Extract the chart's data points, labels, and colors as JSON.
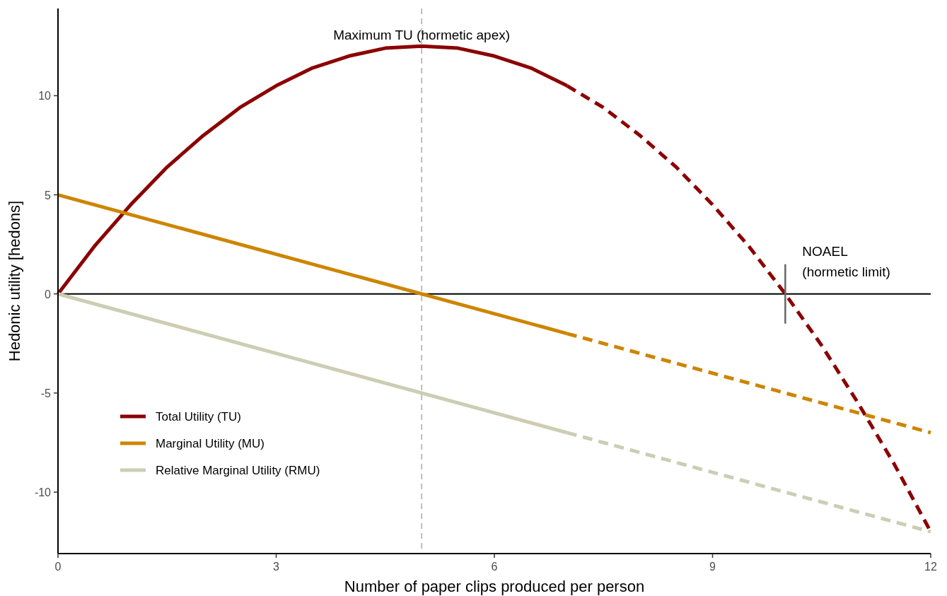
{
  "chart_data": {
    "type": "line",
    "xlabel": "Number of paper clips produced per person",
    "ylabel": "Hedonic utility [hedons]",
    "xlim": [
      0,
      12
    ],
    "xticks": [
      0,
      3,
      6,
      9,
      12
    ],
    "ylim": [
      -13.1,
      14.4
    ],
    "yticks": [
      -10,
      -5,
      0,
      5,
      10
    ],
    "grid": false,
    "legend": "bottom left",
    "marker": "none",
    "series": [
      {
        "name": "Total Utility (TU)",
        "color": "#8b0000",
        "line_style": "solid",
        "x": [
          0,
          0.5,
          1,
          1.5,
          2,
          2.5,
          3,
          3.5,
          4,
          4.5,
          5,
          5.5,
          6,
          6.5,
          7
        ],
        "values": [
          0,
          2.4,
          4.5,
          6.4,
          8,
          9.4,
          10.5,
          11.4,
          12,
          12.4,
          12.5,
          12.4,
          12,
          11.4,
          10.5
        ]
      },
      {
        "color": "#8b0000",
        "line_style": "dashed",
        "x": [
          7,
          7.5,
          8,
          8.5,
          9,
          9.5,
          10,
          10.5,
          11,
          11.5,
          12
        ],
        "values": [
          10.5,
          9.4,
          8,
          6.4,
          4.5,
          2.4,
          0,
          -2.6,
          -5.5,
          -8.6,
          -12
        ]
      },
      {
        "name": "Marginal Utility (MU)",
        "color": "#cd8500",
        "line_style": "solid",
        "x": [
          0,
          7
        ],
        "values": [
          5,
          -2
        ]
      },
      {
        "color": "#cd8500",
        "line_style": "dashed",
        "x": [
          7,
          12
        ],
        "values": [
          -2,
          -7
        ]
      },
      {
        "name": "Relative Marginal Utility (RMU)",
        "color": "#cdcdb4",
        "line_style": "solid",
        "x": [
          0,
          7
        ],
        "values": [
          0,
          -7
        ]
      },
      {
        "color": "#cdcdb4",
        "line_style": "dashed",
        "x": [
          7,
          12
        ],
        "values": [
          -7,
          -12
        ]
      }
    ],
    "ref_lines": [
      {
        "axis": "y",
        "value": 0,
        "color": "#000000",
        "line_style": "solid"
      },
      {
        "axis": "x",
        "value": 5,
        "label": "Maximum TU (hormetic apex)",
        "color": "#bebebe",
        "line_style": "dashed"
      }
    ],
    "annotations": [
      {
        "text": "NOAEL\n(hormetic limit)",
        "x": 10,
        "y": 0
      }
    ]
  }
}
